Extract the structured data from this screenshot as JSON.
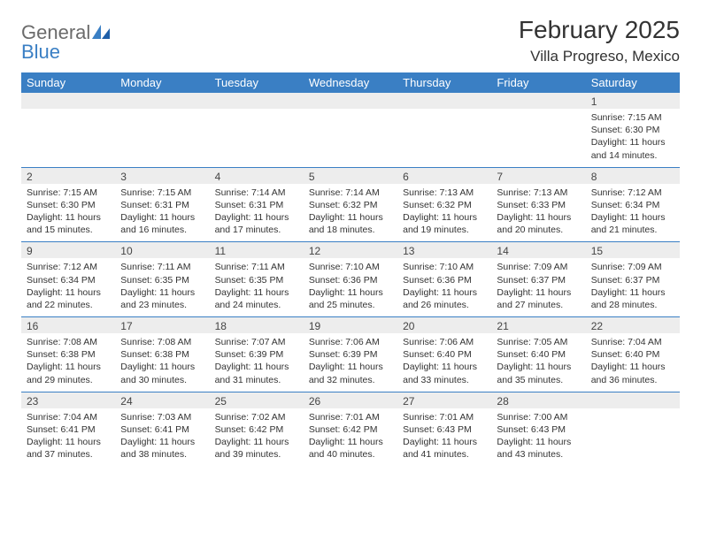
{
  "logo": {
    "word1": "General",
    "word2": "Blue"
  },
  "title": "February 2025",
  "location": "Villa Progreso, Mexico",
  "colors": {
    "accent": "#3a7fc4",
    "row_alt": "#ededed",
    "text": "#333333"
  },
  "weekdays": [
    "Sunday",
    "Monday",
    "Tuesday",
    "Wednesday",
    "Thursday",
    "Friday",
    "Saturday"
  ],
  "weeks": [
    [
      null,
      null,
      null,
      null,
      null,
      null,
      {
        "n": "1",
        "sunrise": "Sunrise: 7:15 AM",
        "sunset": "Sunset: 6:30 PM",
        "daylight": "Daylight: 11 hours and 14 minutes."
      }
    ],
    [
      {
        "n": "2",
        "sunrise": "Sunrise: 7:15 AM",
        "sunset": "Sunset: 6:30 PM",
        "daylight": "Daylight: 11 hours and 15 minutes."
      },
      {
        "n": "3",
        "sunrise": "Sunrise: 7:15 AM",
        "sunset": "Sunset: 6:31 PM",
        "daylight": "Daylight: 11 hours and 16 minutes."
      },
      {
        "n": "4",
        "sunrise": "Sunrise: 7:14 AM",
        "sunset": "Sunset: 6:31 PM",
        "daylight": "Daylight: 11 hours and 17 minutes."
      },
      {
        "n": "5",
        "sunrise": "Sunrise: 7:14 AM",
        "sunset": "Sunset: 6:32 PM",
        "daylight": "Daylight: 11 hours and 18 minutes."
      },
      {
        "n": "6",
        "sunrise": "Sunrise: 7:13 AM",
        "sunset": "Sunset: 6:32 PM",
        "daylight": "Daylight: 11 hours and 19 minutes."
      },
      {
        "n": "7",
        "sunrise": "Sunrise: 7:13 AM",
        "sunset": "Sunset: 6:33 PM",
        "daylight": "Daylight: 11 hours and 20 minutes."
      },
      {
        "n": "8",
        "sunrise": "Sunrise: 7:12 AM",
        "sunset": "Sunset: 6:34 PM",
        "daylight": "Daylight: 11 hours and 21 minutes."
      }
    ],
    [
      {
        "n": "9",
        "sunrise": "Sunrise: 7:12 AM",
        "sunset": "Sunset: 6:34 PM",
        "daylight": "Daylight: 11 hours and 22 minutes."
      },
      {
        "n": "10",
        "sunrise": "Sunrise: 7:11 AM",
        "sunset": "Sunset: 6:35 PM",
        "daylight": "Daylight: 11 hours and 23 minutes."
      },
      {
        "n": "11",
        "sunrise": "Sunrise: 7:11 AM",
        "sunset": "Sunset: 6:35 PM",
        "daylight": "Daylight: 11 hours and 24 minutes."
      },
      {
        "n": "12",
        "sunrise": "Sunrise: 7:10 AM",
        "sunset": "Sunset: 6:36 PM",
        "daylight": "Daylight: 11 hours and 25 minutes."
      },
      {
        "n": "13",
        "sunrise": "Sunrise: 7:10 AM",
        "sunset": "Sunset: 6:36 PM",
        "daylight": "Daylight: 11 hours and 26 minutes."
      },
      {
        "n": "14",
        "sunrise": "Sunrise: 7:09 AM",
        "sunset": "Sunset: 6:37 PM",
        "daylight": "Daylight: 11 hours and 27 minutes."
      },
      {
        "n": "15",
        "sunrise": "Sunrise: 7:09 AM",
        "sunset": "Sunset: 6:37 PM",
        "daylight": "Daylight: 11 hours and 28 minutes."
      }
    ],
    [
      {
        "n": "16",
        "sunrise": "Sunrise: 7:08 AM",
        "sunset": "Sunset: 6:38 PM",
        "daylight": "Daylight: 11 hours and 29 minutes."
      },
      {
        "n": "17",
        "sunrise": "Sunrise: 7:08 AM",
        "sunset": "Sunset: 6:38 PM",
        "daylight": "Daylight: 11 hours and 30 minutes."
      },
      {
        "n": "18",
        "sunrise": "Sunrise: 7:07 AM",
        "sunset": "Sunset: 6:39 PM",
        "daylight": "Daylight: 11 hours and 31 minutes."
      },
      {
        "n": "19",
        "sunrise": "Sunrise: 7:06 AM",
        "sunset": "Sunset: 6:39 PM",
        "daylight": "Daylight: 11 hours and 32 minutes."
      },
      {
        "n": "20",
        "sunrise": "Sunrise: 7:06 AM",
        "sunset": "Sunset: 6:40 PM",
        "daylight": "Daylight: 11 hours and 33 minutes."
      },
      {
        "n": "21",
        "sunrise": "Sunrise: 7:05 AM",
        "sunset": "Sunset: 6:40 PM",
        "daylight": "Daylight: 11 hours and 35 minutes."
      },
      {
        "n": "22",
        "sunrise": "Sunrise: 7:04 AM",
        "sunset": "Sunset: 6:40 PM",
        "daylight": "Daylight: 11 hours and 36 minutes."
      }
    ],
    [
      {
        "n": "23",
        "sunrise": "Sunrise: 7:04 AM",
        "sunset": "Sunset: 6:41 PM",
        "daylight": "Daylight: 11 hours and 37 minutes."
      },
      {
        "n": "24",
        "sunrise": "Sunrise: 7:03 AM",
        "sunset": "Sunset: 6:41 PM",
        "daylight": "Daylight: 11 hours and 38 minutes."
      },
      {
        "n": "25",
        "sunrise": "Sunrise: 7:02 AM",
        "sunset": "Sunset: 6:42 PM",
        "daylight": "Daylight: 11 hours and 39 minutes."
      },
      {
        "n": "26",
        "sunrise": "Sunrise: 7:01 AM",
        "sunset": "Sunset: 6:42 PM",
        "daylight": "Daylight: 11 hours and 40 minutes."
      },
      {
        "n": "27",
        "sunrise": "Sunrise: 7:01 AM",
        "sunset": "Sunset: 6:43 PM",
        "daylight": "Daylight: 11 hours and 41 minutes."
      },
      {
        "n": "28",
        "sunrise": "Sunrise: 7:00 AM",
        "sunset": "Sunset: 6:43 PM",
        "daylight": "Daylight: 11 hours and 43 minutes."
      },
      null
    ]
  ]
}
